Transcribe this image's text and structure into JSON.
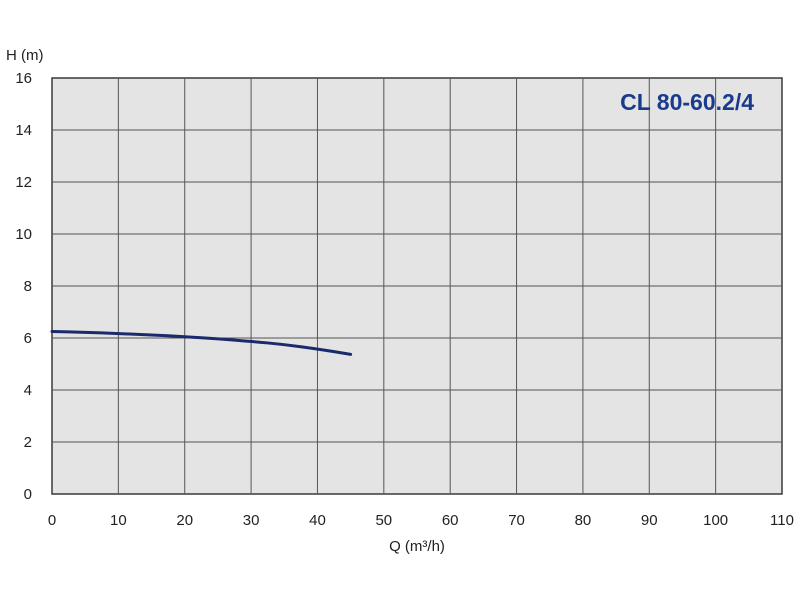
{
  "chart_data": {
    "type": "line",
    "title": "CL 80-60.2/4",
    "xlabel": "Q (m³/h)",
    "ylabel": "H (m)",
    "xlim": [
      0,
      110
    ],
    "ylim": [
      0,
      16
    ],
    "x_ticks": [
      "0",
      "10",
      "20",
      "30",
      "40",
      "50",
      "60",
      "70",
      "80",
      "90",
      "100",
      "110"
    ],
    "y_ticks": [
      "0",
      "2",
      "4",
      "6",
      "8",
      "10",
      "12",
      "14",
      "16"
    ],
    "grid": true,
    "series": [
      {
        "points": [
          {
            "x": 0,
            "y": 6.25
          },
          {
            "x": 5,
            "y": 6.22
          },
          {
            "x": 10,
            "y": 6.17
          },
          {
            "x": 15,
            "y": 6.12
          },
          {
            "x": 20,
            "y": 6.05
          },
          {
            "x": 25,
            "y": 5.97
          },
          {
            "x": 30,
            "y": 5.87
          },
          {
            "x": 35,
            "y": 5.75
          },
          {
            "x": 40,
            "y": 5.58
          },
          {
            "x": 45,
            "y": 5.37
          }
        ]
      }
    ]
  },
  "colors": {
    "plot_background": "#e4e4e4",
    "grid": "#555555",
    "curve": "#1a2a6c",
    "title": "#1a3a8c"
  }
}
